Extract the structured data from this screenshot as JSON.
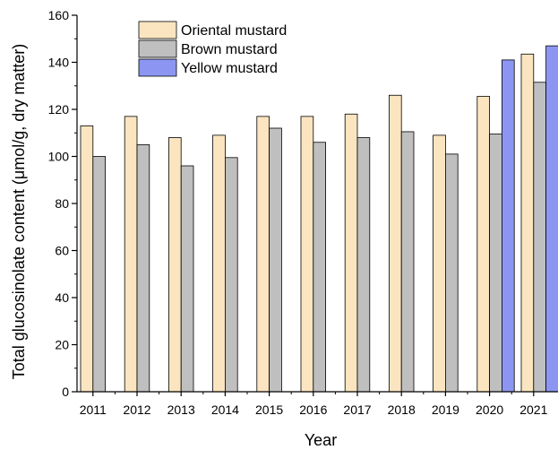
{
  "chart_data": {
    "type": "bar",
    "xlabel": "Year",
    "ylabel": "Total glucosinolate  content (μmol/g, dry matter)",
    "ylim": [
      0,
      160
    ],
    "yticks": [
      0,
      20,
      40,
      60,
      80,
      100,
      120,
      140,
      160
    ],
    "grid": false,
    "legend_position": "top-left",
    "categories": [
      "2011",
      "2012",
      "2013",
      "2014",
      "2015",
      "2016",
      "2017",
      "2018",
      "2019",
      "2020",
      "2021"
    ],
    "series": [
      {
        "name": "Oriental mustard",
        "color": "#fbe5c0",
        "values": [
          113,
          117,
          108,
          109,
          117,
          117,
          118,
          126,
          109,
          125.5,
          143.5
        ]
      },
      {
        "name": "Brown mustard",
        "color": "#bfbfbf",
        "values": [
          100,
          105,
          96,
          99.5,
          112,
          106,
          108,
          110.5,
          101,
          109.5,
          131.5
        ]
      },
      {
        "name": "Yellow mustard",
        "color": "#8c96f2",
        "values": [
          null,
          null,
          null,
          null,
          null,
          null,
          null,
          null,
          null,
          141,
          147
        ]
      }
    ]
  }
}
